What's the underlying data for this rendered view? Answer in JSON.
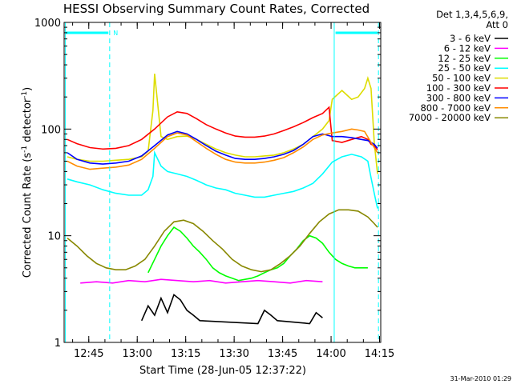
{
  "chart_data": {
    "type": "line",
    "title": "HESSI Observing Summary Count Rates, Corrected",
    "xlabel": "Start Time (28-Jun-05 12:37:22)",
    "ylabel": "Corrected Count Rate (s",
    "ylabel_sup1": "-1",
    "ylabel_mid": " detector",
    "ylabel_sup2": "-1",
    "ylabel_end": ")",
    "yscale": "log",
    "xlim_minutes": [
      0,
      98
    ],
    "ylim": [
      1,
      1000
    ],
    "x_ticks": [
      {
        "label": "12:45",
        "minute": 7.63
      },
      {
        "label": "13:00",
        "minute": 22.63
      },
      {
        "label": "13:15",
        "minute": 37.63
      },
      {
        "label": "13:30",
        "minute": 52.63
      },
      {
        "label": "13:45",
        "minute": 67.63
      },
      {
        "label": "14:00",
        "minute": 82.63
      },
      {
        "label": "14:15",
        "minute": 97.63
      }
    ],
    "y_ticks": [
      {
        "label": "1",
        "value": 1
      },
      {
        "label": "10",
        "value": 10
      },
      {
        "label": "100",
        "value": 100
      },
      {
        "label": "1000",
        "value": 1000
      }
    ],
    "legend_header": [
      "Det 1,3,4,5,6,9,",
      "Att 0"
    ],
    "night_marker": "N",
    "timestamp": "31-Mar-2010 01:29",
    "series": [
      {
        "name": "3 - 6 keV",
        "color": "#000000",
        "x": [
          24,
          26,
          28,
          30,
          32,
          34,
          36,
          38,
          40,
          42,
          60,
          62,
          64,
          66,
          76,
          78,
          80
        ],
        "y": [
          1.6,
          2.2,
          1.8,
          2.6,
          1.9,
          2.8,
          2.5,
          2.0,
          1.8,
          1.6,
          1.5,
          2.0,
          1.8,
          1.6,
          1.5,
          1.9,
          1.7
        ]
      },
      {
        "name": "6 - 12 keV",
        "color": "#ff00ff",
        "x": [
          5,
          10,
          15,
          20,
          25,
          30,
          35,
          40,
          45,
          50,
          55,
          60,
          65,
          70,
          75,
          80
        ],
        "y": [
          3.6,
          3.7,
          3.6,
          3.8,
          3.7,
          3.9,
          3.8,
          3.7,
          3.8,
          3.6,
          3.7,
          3.8,
          3.7,
          3.6,
          3.8,
          3.7
        ]
      },
      {
        "name": "12 - 25 keV",
        "color": "#00ff00",
        "x": [
          26,
          28,
          30,
          32,
          34,
          36,
          38,
          40,
          42,
          44,
          46,
          48,
          50,
          52,
          54,
          56,
          58,
          60,
          62,
          64,
          66,
          68,
          70,
          72,
          74,
          76,
          78,
          80,
          82,
          84,
          86,
          88,
          90,
          92,
          94
        ],
        "y": [
          4.5,
          6,
          8,
          10,
          12,
          11,
          9.5,
          8,
          7,
          6,
          5,
          4.5,
          4.2,
          4.0,
          3.8,
          3.9,
          4.0,
          4.2,
          4.5,
          4.8,
          5,
          5.5,
          6.5,
          7.5,
          9,
          10,
          9.5,
          8.5,
          7,
          6,
          5.5,
          5.2,
          5,
          5,
          5
        ]
      },
      {
        "name": "25 - 50 keV",
        "color": "#00ffff",
        "x": [
          1,
          4,
          8,
          12,
          16,
          20,
          24,
          26,
          27.5,
          28,
          30,
          32,
          35,
          38,
          41,
          44,
          47,
          50,
          53,
          56,
          59,
          62,
          65,
          68,
          71,
          74,
          77,
          80,
          83,
          86,
          89,
          92,
          94,
          95,
          96,
          97
        ],
        "y": [
          34,
          32,
          30,
          27,
          25,
          24,
          24,
          27,
          36,
          60,
          45,
          40,
          38,
          36,
          33,
          30,
          28,
          27,
          25,
          24,
          23,
          23,
          24,
          25,
          26,
          28,
          31,
          38,
          49,
          55,
          58,
          55,
          50,
          35,
          25,
          18
        ]
      },
      {
        "name": "50 - 100 keV",
        "color": "#dddd00",
        "x": [
          1,
          4,
          8,
          12,
          16,
          20,
          24,
          26,
          27.5,
          28,
          30,
          32,
          35,
          38,
          41,
          44,
          47,
          50,
          53,
          56,
          59,
          62,
          65,
          68,
          71,
          74,
          77,
          80,
          82,
          83,
          86,
          89,
          91,
          93,
          94,
          95,
          96,
          97
        ],
        "y": [
          55,
          52,
          50,
          50,
          51,
          52,
          55,
          62,
          150,
          330,
          85,
          80,
          85,
          86,
          80,
          72,
          65,
          60,
          57,
          55,
          55,
          56,
          57,
          60,
          65,
          72,
          85,
          100,
          120,
          190,
          230,
          190,
          200,
          240,
          300,
          240,
          75,
          38
        ]
      },
      {
        "name": "100 - 300 keV",
        "color": "#ff0000",
        "x": [
          1,
          4,
          8,
          12,
          16,
          20,
          24,
          28,
          32,
          35,
          38,
          41,
          44,
          47,
          50,
          53,
          56,
          59,
          62,
          65,
          68,
          71,
          74,
          77,
          80,
          82,
          83,
          86,
          89,
          92,
          94,
          95,
          96,
          97
        ],
        "y": [
          80,
          73,
          67,
          65,
          66,
          70,
          80,
          100,
          130,
          145,
          140,
          125,
          110,
          100,
          92,
          86,
          84,
          84,
          86,
          90,
          97,
          105,
          115,
          128,
          140,
          160,
          78,
          75,
          80,
          85,
          80,
          72,
          70,
          64
        ]
      },
      {
        "name": "300 - 800 keV",
        "color": "#0000ff",
        "x": [
          1,
          4,
          8,
          12,
          16,
          20,
          24,
          28,
          32,
          35,
          38,
          41,
          44,
          47,
          50,
          53,
          56,
          59,
          62,
          65,
          68,
          71,
          74,
          77,
          80,
          83,
          86,
          89,
          92,
          94,
          96,
          97
        ],
        "y": [
          60,
          52,
          48,
          47,
          48,
          50,
          56,
          70,
          88,
          95,
          90,
          80,
          70,
          62,
          57,
          53,
          52,
          52,
          53,
          55,
          58,
          63,
          72,
          85,
          90,
          85,
          85,
          83,
          80,
          78,
          72,
          66
        ]
      },
      {
        "name": "800 - 7000 keV",
        "color": "#ff8c00",
        "x": [
          1,
          4,
          8,
          12,
          16,
          20,
          24,
          28,
          32,
          35,
          38,
          41,
          44,
          47,
          50,
          53,
          56,
          59,
          62,
          65,
          68,
          71,
          74,
          77,
          80,
          83,
          86,
          89,
          91,
          93,
          95,
          97
        ],
        "y": [
          50,
          45,
          42,
          43,
          44,
          46,
          52,
          66,
          85,
          92,
          88,
          76,
          66,
          58,
          52,
          49,
          48,
          48,
          49,
          51,
          54,
          60,
          68,
          80,
          88,
          92,
          95,
          100,
          98,
          95,
          75,
          60
        ]
      },
      {
        "name": "7000 - 20000 keV",
        "color": "#888800",
        "x": [
          1,
          4,
          7,
          10,
          13,
          16,
          19,
          22,
          25,
          28,
          31,
          34,
          37,
          40,
          43,
          46,
          49,
          52,
          55,
          58,
          61,
          64,
          67,
          70,
          73,
          76,
          79,
          82,
          85,
          88,
          91,
          94,
          96,
          97
        ],
        "y": [
          9.5,
          8,
          6.5,
          5.5,
          5,
          4.8,
          4.8,
          5.2,
          6,
          8,
          11,
          13.5,
          14,
          13,
          11,
          9,
          7.5,
          6,
          5.2,
          4.8,
          4.6,
          4.8,
          5.5,
          6.5,
          8,
          10.5,
          13.5,
          16,
          17.5,
          17.5,
          17,
          15,
          13,
          12
        ]
      }
    ]
  }
}
